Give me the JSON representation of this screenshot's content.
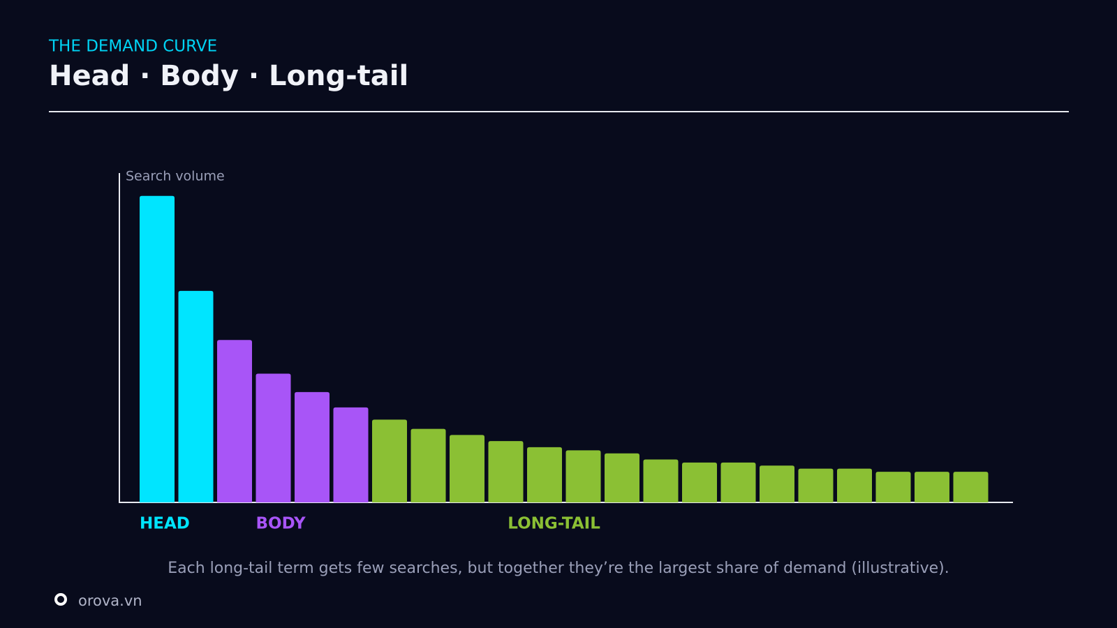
{
  "header": {
    "eyebrow": "THE DEMAND CURVE"
  },
  "chart_data": {
    "type": "bar",
    "title": "Head · Body · Long-tail",
    "y_label": "Search volume",
    "ylim": [
      0,
      107
    ],
    "series": [
      {
        "name": "HEAD",
        "color": "#00e5ff",
        "values": [
          100,
          69
        ]
      },
      {
        "name": "BODY",
        "color": "#a855f7",
        "values": [
          53,
          42,
          36,
          31
        ]
      },
      {
        "name": "LONG-TAIL",
        "color": "#8bc034",
        "values": [
          27,
          24,
          22,
          20,
          18,
          17,
          16,
          14,
          13,
          13,
          12,
          11,
          11,
          10,
          10,
          10
        ]
      }
    ],
    "caption": "Each long-tail term gets few searches, but together they’re the largest share of demand (illustrative)."
  },
  "footer": {
    "brand": "orova.vn"
  }
}
